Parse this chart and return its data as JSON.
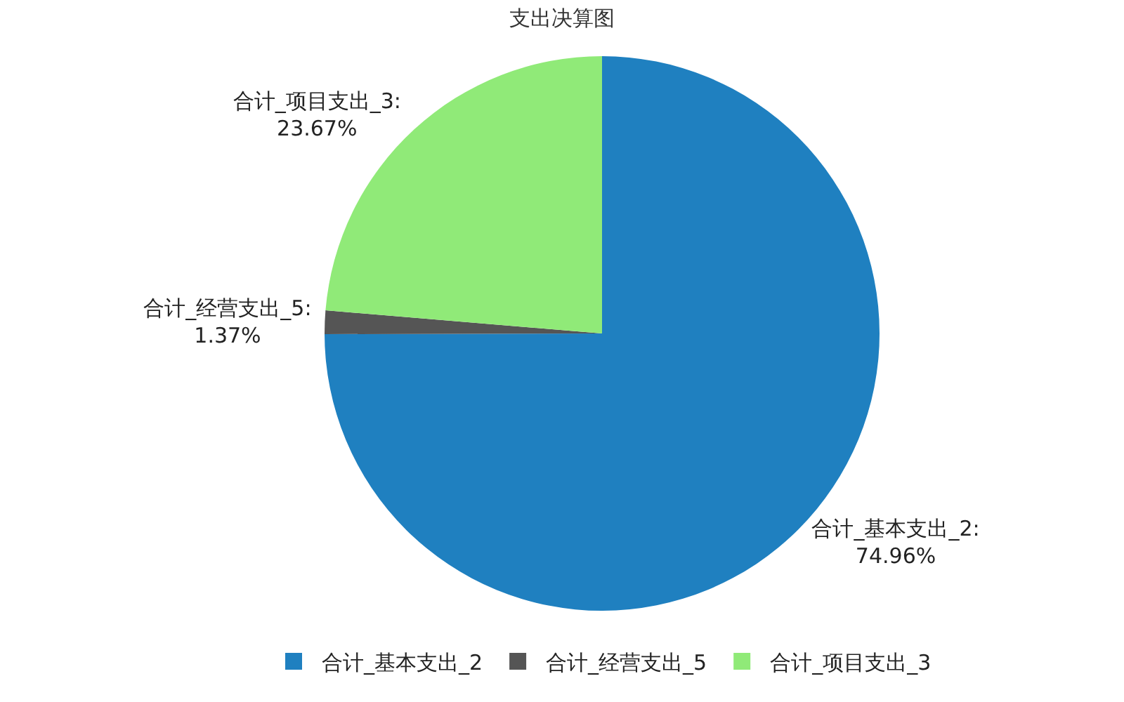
{
  "chart_data": {
    "type": "pie",
    "title": "支出决算图",
    "categories": [
      "合计_基本支出_2",
      "合计_经营支出_5",
      "合计_项目支出_3"
    ],
    "values": [
      74.96,
      1.37,
      23.67
    ],
    "colors": [
      "#1f80c0",
      "#555555",
      "#90ea78"
    ],
    "value_labels": [
      "合计_基本支出_2:\n74.96%",
      "合计_经营支出_5:\n1.37%",
      "合计_项目支出_3:\n23.67%"
    ],
    "legend": "bottom"
  }
}
